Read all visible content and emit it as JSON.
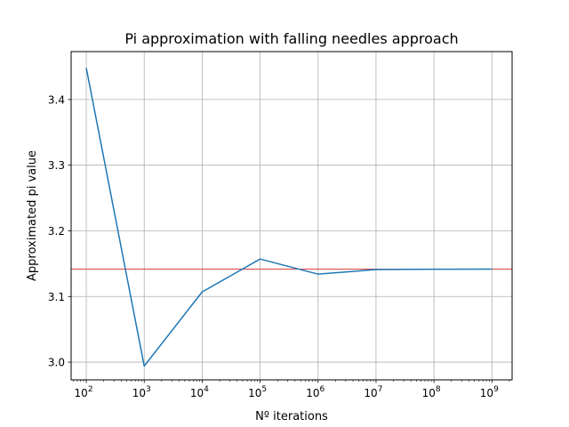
{
  "chart_data": {
    "type": "line",
    "title": "Pi approximation with falling needles approach",
    "xlabel": "Nº iterations",
    "ylabel": "Approximated pi value",
    "xscale": "log",
    "x": [
      100,
      1000,
      10000,
      100000,
      1000000,
      10000000,
      100000000,
      1000000000
    ],
    "xticks": [
      {
        "base": "10",
        "exp": "2",
        "value": 100
      },
      {
        "base": "10",
        "exp": "3",
        "value": 1000
      },
      {
        "base": "10",
        "exp": "4",
        "value": 10000
      },
      {
        "base": "10",
        "exp": "5",
        "value": 100000
      },
      {
        "base": "10",
        "exp": "6",
        "value": 1000000
      },
      {
        "base": "10",
        "exp": "7",
        "value": 10000000
      },
      {
        "base": "10",
        "exp": "8",
        "value": 100000000
      },
      {
        "base": "10",
        "exp": "9",
        "value": 1000000000
      }
    ],
    "yticks": [
      "3.0",
      "3.1",
      "3.2",
      "3.3",
      "3.4"
    ],
    "ylim": [
      2.973,
      3.473
    ],
    "grid": true,
    "series": [
      {
        "color": "#1f77b4",
        "values": [
          3.448,
          2.994,
          3.107,
          3.157,
          3.134,
          3.141,
          3.1415,
          3.1417
        ]
      }
    ],
    "reference_line": {
      "value": 3.14159,
      "color": "#d62728"
    }
  }
}
